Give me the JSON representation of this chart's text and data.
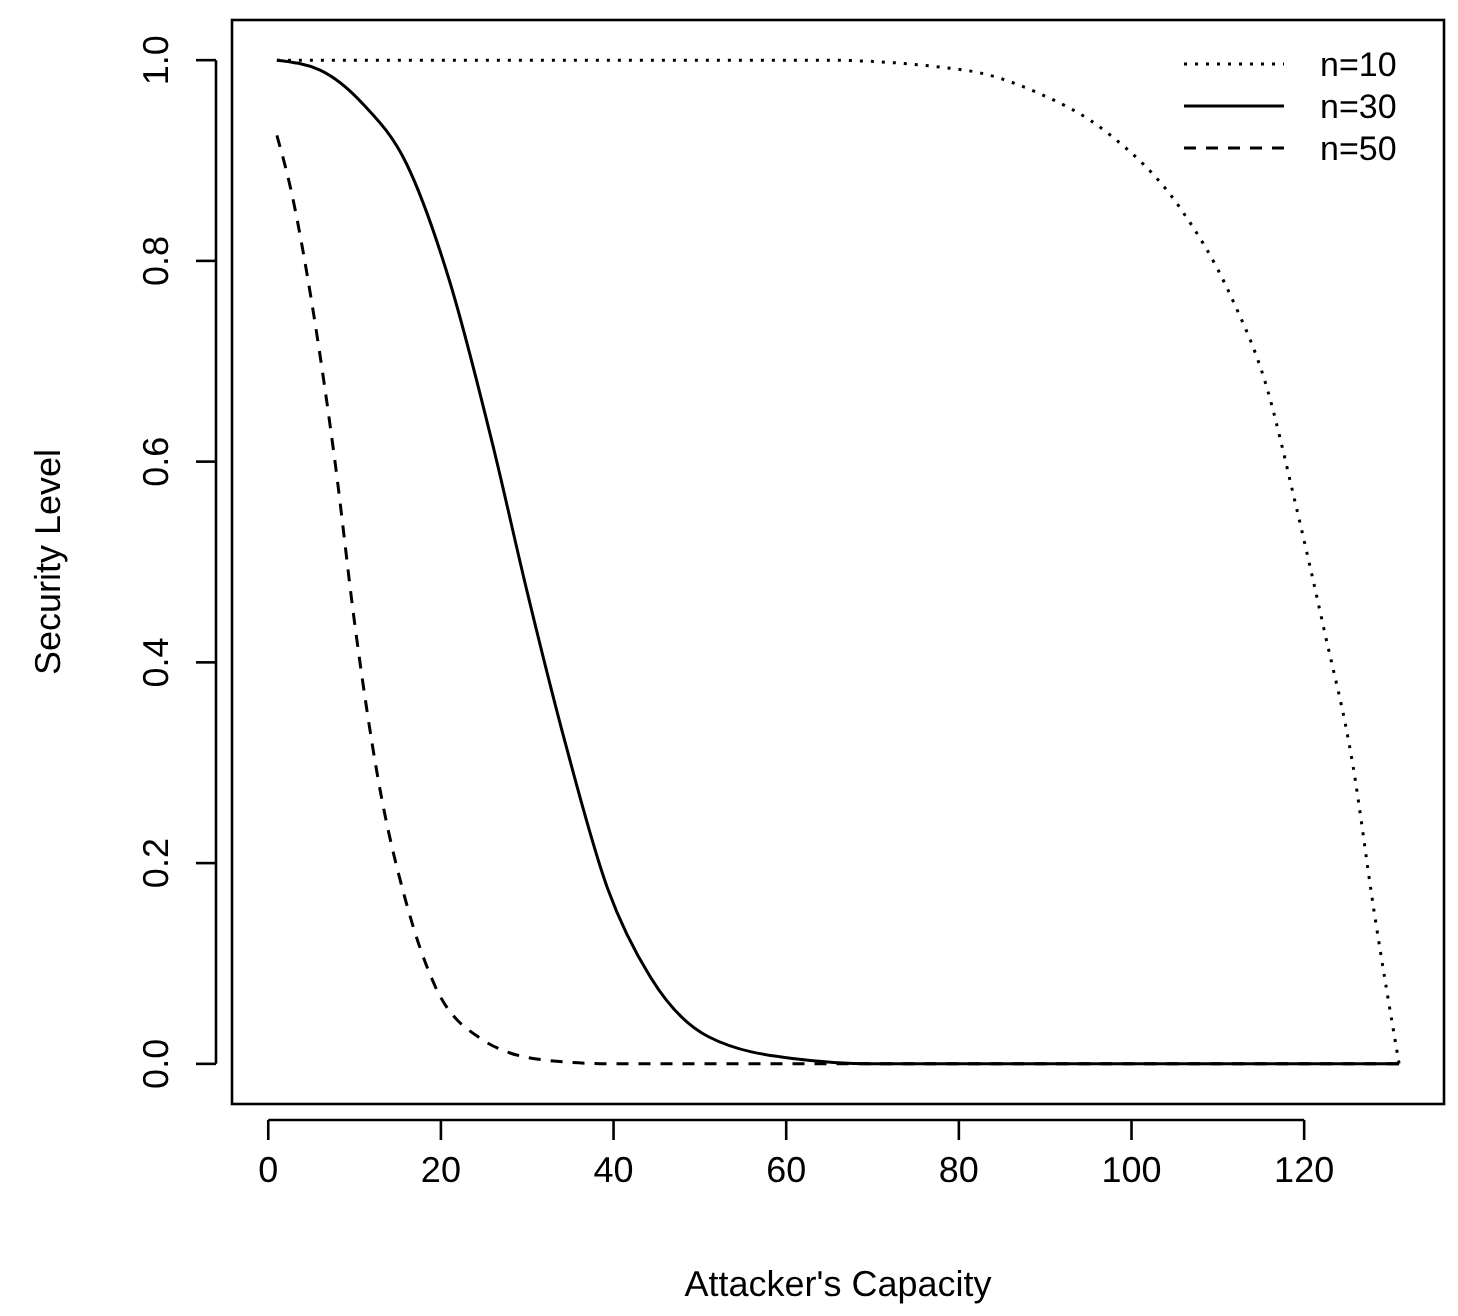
{
  "chart_data": {
    "type": "line",
    "xlabel": "Attacker's Capacity",
    "ylabel": "Security Level",
    "xlim": [
      -4.2,
      136.2
    ],
    "ylim": [
      -0.04,
      1.04
    ],
    "xticks": [
      0,
      20,
      40,
      60,
      80,
      100,
      120
    ],
    "yticks": [
      {
        "value": 0,
        "label": "0.0"
      },
      {
        "value": 0.2,
        "label": "0.2"
      },
      {
        "value": 0.4,
        "label": "0.4"
      },
      {
        "value": 0.6,
        "label": "0.6"
      },
      {
        "value": 0.8,
        "label": "0.8"
      },
      {
        "value": 1,
        "label": "1.0"
      }
    ],
    "grid": false,
    "legend": "top right",
    "marker": "none",
    "series": [
      {
        "name": "n=10",
        "color": "#000000",
        "line_style": "dotted",
        "x": [
          1,
          40,
          64,
          80.7,
          89,
          97.3,
          105.6,
          111.5,
          115.6,
          119,
          122.3,
          125.6,
          128.1,
          131
        ],
        "values": [
          1,
          1,
          1,
          0.99,
          0.968,
          0.927,
          0.853,
          0.765,
          0.676,
          0.558,
          0.433,
          0.3,
          0.152,
          0
        ]
      },
      {
        "name": "n=30",
        "color": "#000000",
        "line_style": "solid",
        "x": [
          1,
          6,
          11,
          16,
          21,
          26,
          30,
          34.4,
          39.3,
          44.3,
          51,
          61,
          70,
          131
        ],
        "values": [
          1,
          0.99,
          0.956,
          0.897,
          0.78,
          0.617,
          0.47,
          0.32,
          0.175,
          0.086,
          0.027,
          0.005,
          0,
          0
        ]
      },
      {
        "name": "n=50",
        "color": "#000000",
        "line_style": "dashed",
        "x": [
          1,
          2.7,
          5.2,
          7.7,
          10.1,
          12.7,
          16,
          19.3,
          24.3,
          31.8,
          40,
          131
        ],
        "values": [
          0.925,
          0.868,
          0.75,
          0.602,
          0.433,
          0.285,
          0.16,
          0.078,
          0.027,
          0.004,
          0,
          0
        ]
      }
    ]
  }
}
